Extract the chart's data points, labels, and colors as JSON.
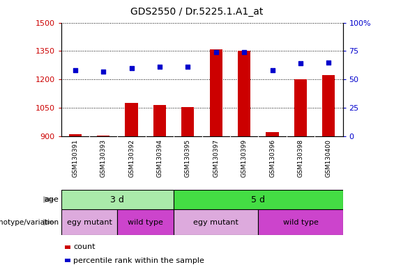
{
  "title": "GDS2550 / Dr.5225.1.A1_at",
  "samples": [
    "GSM130391",
    "GSM130393",
    "GSM130392",
    "GSM130394",
    "GSM130395",
    "GSM130397",
    "GSM130399",
    "GSM130396",
    "GSM130398",
    "GSM130400"
  ],
  "counts": [
    912,
    902,
    1075,
    1065,
    1055,
    1358,
    1350,
    922,
    1202,
    1222
  ],
  "percentiles": [
    58,
    57,
    60,
    61,
    61,
    74,
    74,
    58,
    64,
    65
  ],
  "ylim_left": [
    900,
    1500
  ],
  "ylim_right": [
    0,
    100
  ],
  "yticks_left": [
    900,
    1050,
    1200,
    1350,
    1500
  ],
  "yticks_right": [
    0,
    25,
    50,
    75,
    100
  ],
  "left_tick_labels": [
    "900",
    "1050",
    "1200",
    "1350",
    "1500"
  ],
  "right_tick_labels": [
    "0",
    "25",
    "50",
    "75",
    "100%"
  ],
  "bar_color": "#cc0000",
  "dot_color": "#0000cc",
  "age_groups": [
    {
      "label": "3 d",
      "start": 0,
      "end": 4,
      "color": "#aaeaaa"
    },
    {
      "label": "5 d",
      "start": 4,
      "end": 10,
      "color": "#44dd44"
    }
  ],
  "genotype_groups": [
    {
      "label": "egy mutant",
      "start": 0,
      "end": 2,
      "color": "#ddaadd"
    },
    {
      "label": "wild type",
      "start": 2,
      "end": 4,
      "color": "#cc44cc"
    },
    {
      "label": "egy mutant",
      "start": 4,
      "end": 7,
      "color": "#ddaadd"
    },
    {
      "label": "wild type",
      "start": 7,
      "end": 10,
      "color": "#cc44cc"
    }
  ],
  "age_label": "age",
  "genotype_label": "genotype/variation",
  "legend_count": "count",
  "legend_percentile": "percentile rank within the sample",
  "bar_color_red": "#cc0000",
  "dot_color_blue": "#0000cc",
  "plot_bg_color": "#ffffff",
  "xticklabel_bg": "#c8c8c8"
}
